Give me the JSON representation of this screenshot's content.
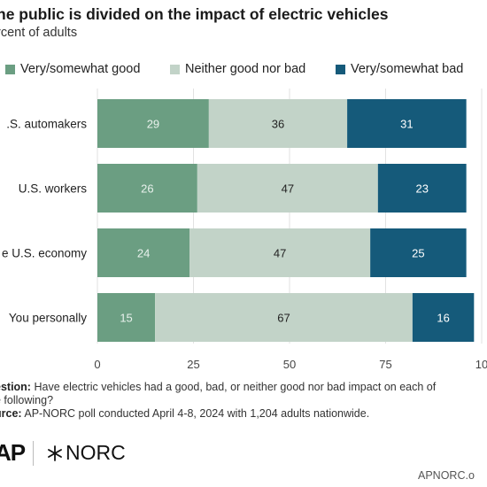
{
  "header": {
    "title": "he public is divided on the impact of electric vehicles",
    "subtitle": "rcent of adults"
  },
  "legend": [
    {
      "label": "Very/somewhat good",
      "color": "#6b9e82"
    },
    {
      "label": "Neither good nor bad",
      "color": "#c2d3c8"
    },
    {
      "label": "Very/somewhat bad",
      "color": "#155a7a"
    }
  ],
  "chart_data": {
    "type": "bar",
    "orientation": "horizontal",
    "stacked": true,
    "categories": [
      ".S. automakers",
      "U.S. workers",
      "e U.S. economy",
      "You personally"
    ],
    "series": [
      {
        "name": "Very/somewhat good",
        "values": [
          29,
          26,
          24,
          15
        ]
      },
      {
        "name": "Neither good nor bad",
        "values": [
          36,
          47,
          47,
          67
        ]
      },
      {
        "name": "Very/somewhat bad",
        "values": [
          31,
          23,
          25,
          16
        ]
      }
    ],
    "xlim": [
      0,
      100
    ],
    "xticks": [
      "0",
      "25",
      "50",
      "75",
      "10"
    ],
    "colors": [
      "#6b9e82",
      "#c2d3c8",
      "#155a7a"
    ],
    "label_colors": [
      "#e8f1ec",
      "#222222",
      "#ffffff"
    ],
    "grid": true,
    "legend_position": "top"
  },
  "notes": {
    "question_label": "estion:",
    "question_text": "Have electric vehicles had a good, bad, or neither good nor bad impact on each of",
    "question_cont": "e following?",
    "source_label": "urce:",
    "source_text": "AP-NORC poll conducted April 4-8, 2024 with 1,204 adults nationwide."
  },
  "footer": {
    "ap_logo": "AP",
    "norc_logo": "NORC",
    "url": "APNORC.o"
  }
}
